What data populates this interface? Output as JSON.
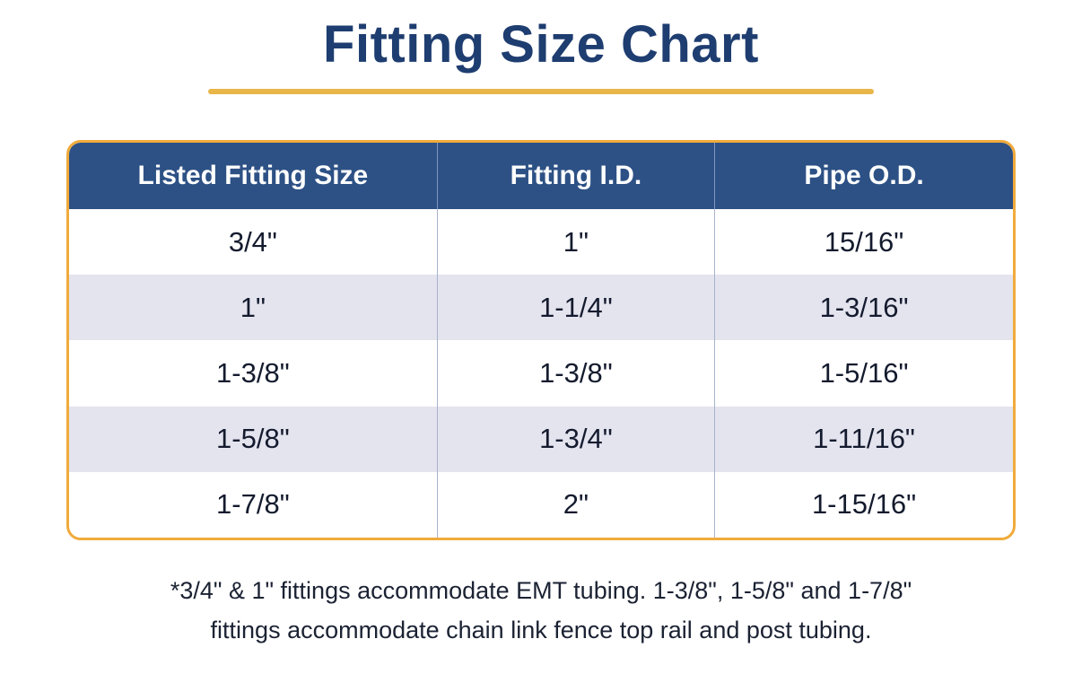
{
  "page": {
    "title": "Fitting Size Chart"
  },
  "chart_data": {
    "type": "table",
    "title": "Fitting Size Chart",
    "columns": [
      "Listed Fitting Size",
      "Fitting I.D.",
      "Pipe O.D."
    ],
    "rows": [
      [
        "3/4\"",
        "1\"",
        "15/16\""
      ],
      [
        "1\"",
        "1-1/4\"",
        "1-3/16\""
      ],
      [
        "1-3/8\"",
        "1-3/8\"",
        "1-5/16\""
      ],
      [
        "1-5/8\"",
        "1-3/4\"",
        "1-11/16\""
      ],
      [
        "1-7/8\"",
        "2\"",
        "1-15/16\""
      ]
    ],
    "footnote_line1": "*3/4\" & 1\" fittings accommodate EMT tubing.  1-3/8\", 1-5/8\" and 1-7/8\"",
    "footnote_line2": "fittings accommodate chain link fence top rail and post tubing.",
    "layout": {
      "header_row": true,
      "alternating_rows": true
    }
  },
  "colors": {
    "title_text": "#1e3d70",
    "accent_gold": "#e9b64a",
    "table_border_gold": "#f0ab3c",
    "header_bg": "#2d5185",
    "header_text": "#ffffff",
    "row_alt_bg": "#e4e4ef",
    "body_text": "#141b2e"
  }
}
